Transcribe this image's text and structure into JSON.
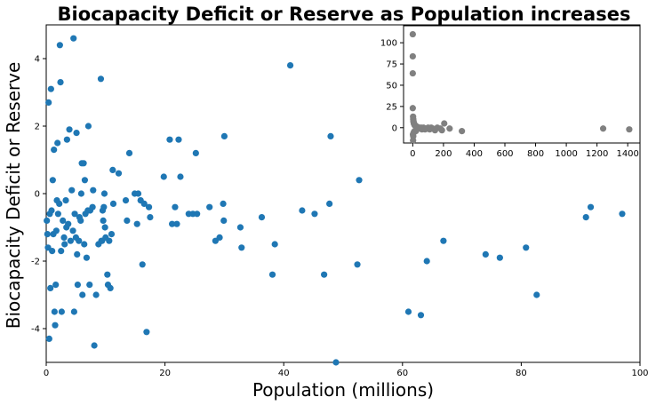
{
  "chart_data": [
    {
      "type": "scatter",
      "title": "Biocapacity Deficit or Reserve as Population increases",
      "xlabel": "Population (millions)",
      "ylabel": "Biocapacity Deficit or Reserve",
      "xlim": [
        0,
        100
      ],
      "ylim": [
        -5,
        5
      ],
      "x_ticks": [
        0,
        20,
        40,
        60,
        80,
        100
      ],
      "y_ticks": [
        -4,
        -2,
        0,
        2,
        4
      ],
      "grid": false,
      "color": "#1f77b4",
      "points": [
        [
          0.1,
          -0.8
        ],
        [
          0.2,
          -1.2
        ],
        [
          0.3,
          -1.6
        ],
        [
          0.4,
          2.7
        ],
        [
          0.5,
          -4.3
        ],
        [
          0.6,
          -0.6
        ],
        [
          0.7,
          -2.8
        ],
        [
          0.8,
          3.1
        ],
        [
          0.9,
          -0.5
        ],
        [
          1.0,
          -1.7
        ],
        [
          1.1,
          0.4
        ],
        [
          1.2,
          -1.2
        ],
        [
          1.3,
          1.3
        ],
        [
          1.4,
          -3.5
        ],
        [
          1.5,
          -3.9
        ],
        [
          1.6,
          -2.7
        ],
        [
          1.7,
          -1.1
        ],
        [
          1.8,
          -0.2
        ],
        [
          1.9,
          1.5
        ],
        [
          2.0,
          -0.6
        ],
        [
          2.2,
          -0.3
        ],
        [
          2.3,
          4.4
        ],
        [
          2.4,
          3.3
        ],
        [
          2.5,
          -1.7
        ],
        [
          2.6,
          -3.5
        ],
        [
          2.8,
          -0.8
        ],
        [
          3.0,
          -1.3
        ],
        [
          3.1,
          -1.5
        ],
        [
          3.3,
          -0.2
        ],
        [
          3.4,
          -1.0
        ],
        [
          3.5,
          1.6
        ],
        [
          3.7,
          -0.9
        ],
        [
          3.9,
          1.9
        ],
        [
          4.1,
          -1.4
        ],
        [
          4.3,
          0.1
        ],
        [
          4.5,
          -1.1
        ],
        [
          4.6,
          4.6
        ],
        [
          4.7,
          -3.5
        ],
        [
          4.8,
          -0.6
        ],
        [
          5.0,
          -1.3
        ],
        [
          5.1,
          1.8
        ],
        [
          5.2,
          -1.8
        ],
        [
          5.3,
          -2.7
        ],
        [
          5.5,
          -1.4
        ],
        [
          5.6,
          -0.7
        ],
        [
          5.8,
          -0.8
        ],
        [
          5.9,
          0.0
        ],
        [
          6.0,
          0.9
        ],
        [
          6.1,
          -3.0
        ],
        [
          6.3,
          0.9
        ],
        [
          6.4,
          -1.5
        ],
        [
          6.5,
          0.4
        ],
        [
          6.6,
          -0.6
        ],
        [
          6.8,
          -1.9
        ],
        [
          7.0,
          -0.5
        ],
        [
          7.1,
          2.0
        ],
        [
          7.3,
          -2.7
        ],
        [
          7.4,
          -0.5
        ],
        [
          7.8,
          -0.4
        ],
        [
          7.9,
          0.1
        ],
        [
          8.1,
          -4.5
        ],
        [
          8.4,
          -3.0
        ],
        [
          8.8,
          -1.5
        ],
        [
          9.2,
          3.4
        ],
        [
          9.3,
          -1.4
        ],
        [
          9.4,
          -1.4
        ],
        [
          9.5,
          -0.5
        ],
        [
          9.6,
          -0.8
        ],
        [
          9.7,
          -0.4
        ],
        [
          9.8,
          0.0
        ],
        [
          9.9,
          -1.0
        ],
        [
          10.0,
          -1.3
        ],
        [
          10.3,
          -2.4
        ],
        [
          10.4,
          -2.7
        ],
        [
          10.6,
          -1.4
        ],
        [
          10.8,
          -2.8
        ],
        [
          11.0,
          -1.2
        ],
        [
          11.2,
          0.7
        ],
        [
          11.3,
          -0.3
        ],
        [
          12.2,
          0.6
        ],
        [
          13.4,
          -0.2
        ],
        [
          13.6,
          -0.8
        ],
        [
          14.0,
          1.2
        ],
        [
          14.9,
          0.0
        ],
        [
          15.3,
          -0.9
        ],
        [
          15.5,
          0.0
        ],
        [
          15.9,
          -0.2
        ],
        [
          16.2,
          -2.1
        ],
        [
          16.5,
          -0.3
        ],
        [
          16.9,
          -4.1
        ],
        [
          17.3,
          -0.4
        ],
        [
          17.5,
          -0.7
        ],
        [
          19.8,
          0.5
        ],
        [
          20.8,
          1.6
        ],
        [
          21.2,
          -0.9
        ],
        [
          21.7,
          -0.4
        ],
        [
          22.0,
          -0.9
        ],
        [
          22.3,
          1.6
        ],
        [
          22.6,
          0.5
        ],
        [
          24.0,
          -0.6
        ],
        [
          24.7,
          -0.6
        ],
        [
          25.2,
          1.2
        ],
        [
          25.4,
          -0.6
        ],
        [
          27.5,
          -0.4
        ],
        [
          28.5,
          -1.4
        ],
        [
          29.2,
          -1.3
        ],
        [
          29.8,
          -0.3
        ],
        [
          29.9,
          -0.8
        ],
        [
          30.0,
          1.7
        ],
        [
          32.7,
          -1.0
        ],
        [
          32.9,
          -1.6
        ],
        [
          36.3,
          -0.7
        ],
        [
          38.1,
          -2.4
        ],
        [
          38.5,
          -1.5
        ],
        [
          41.1,
          3.8
        ],
        [
          43.1,
          -0.5
        ],
        [
          45.2,
          -0.6
        ],
        [
          46.8,
          -2.4
        ],
        [
          47.7,
          -0.3
        ],
        [
          47.9,
          1.7
        ],
        [
          48.8,
          -5.0
        ],
        [
          52.4,
          -2.1
        ],
        [
          52.7,
          0.4
        ],
        [
          61.0,
          -3.5
        ],
        [
          63.1,
          -3.6
        ],
        [
          64.1,
          -2.0
        ],
        [
          66.9,
          -1.4
        ],
        [
          74.0,
          -1.8
        ],
        [
          76.4,
          -1.9
        ],
        [
          80.8,
          -1.6
        ],
        [
          82.6,
          -3.0
        ],
        [
          90.9,
          -0.7
        ],
        [
          91.7,
          -0.4
        ],
        [
          97.0,
          -0.6
        ]
      ]
    },
    {
      "type": "scatter",
      "title": "",
      "xlabel": "",
      "ylabel": "",
      "xlim": [
        -60,
        1480
      ],
      "ylim": [
        -18,
        120
      ],
      "x_ticks": [
        0,
        200,
        400,
        600,
        800,
        1000,
        1200,
        1400
      ],
      "y_ticks": [
        0,
        25,
        50,
        75,
        100
      ],
      "grid": false,
      "color": "#808080",
      "points": [
        [
          0,
          110
        ],
        [
          0,
          84
        ],
        [
          0,
          64
        ],
        [
          0,
          23
        ],
        [
          2,
          13
        ],
        [
          3,
          10
        ],
        [
          4,
          8
        ],
        [
          5,
          7
        ],
        [
          6,
          6
        ],
        [
          7,
          5
        ],
        [
          8,
          5
        ],
        [
          10,
          4
        ],
        [
          12,
          3
        ],
        [
          15,
          3
        ],
        [
          18,
          2
        ],
        [
          20,
          2
        ],
        [
          25,
          1
        ],
        [
          30,
          1
        ],
        [
          35,
          0
        ],
        [
          40,
          0
        ],
        [
          45,
          -1
        ],
        [
          50,
          -1
        ],
        [
          55,
          0
        ],
        [
          60,
          -2
        ],
        [
          65,
          -1
        ],
        [
          70,
          0
        ],
        [
          75,
          -1
        ],
        [
          80,
          -2
        ],
        [
          90,
          -1
        ],
        [
          100,
          0
        ],
        [
          110,
          -2
        ],
        [
          120,
          0
        ],
        [
          130,
          -1
        ],
        [
          145,
          -3
        ],
        [
          160,
          0
        ],
        [
          180,
          -1
        ],
        [
          190,
          -3
        ],
        [
          205,
          5
        ],
        [
          240,
          -1
        ],
        [
          320,
          -4
        ],
        [
          2,
          -15
        ],
        [
          3,
          -10
        ],
        [
          1,
          -8
        ],
        [
          5,
          -6
        ],
        [
          8,
          -5
        ],
        [
          12,
          -4
        ],
        [
          20,
          -4
        ],
        [
          1240,
          -1
        ],
        [
          1410,
          -2
        ]
      ]
    }
  ]
}
